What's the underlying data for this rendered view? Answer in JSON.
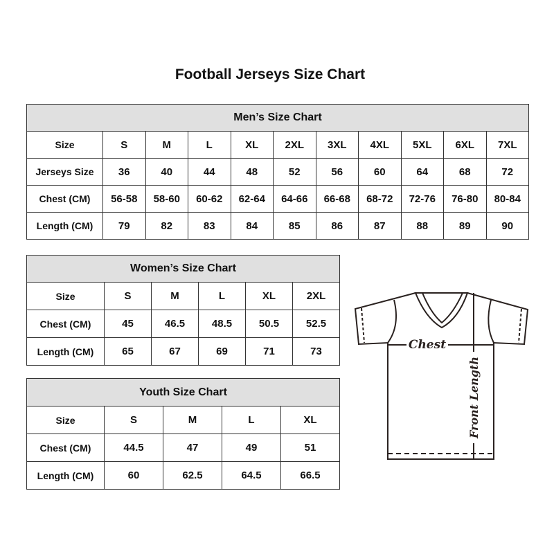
{
  "title": "Football Jerseys Size Chart",
  "men": {
    "title": "Men’s Size Chart",
    "rows": [
      {
        "label": "Size",
        "values": [
          "S",
          "M",
          "L",
          "XL",
          "2XL",
          "3XL",
          "4XL",
          "5XL",
          "6XL",
          "7XL"
        ]
      },
      {
        "label": "Jerseys Size",
        "values": [
          "36",
          "40",
          "44",
          "48",
          "52",
          "56",
          "60",
          "64",
          "68",
          "72"
        ]
      },
      {
        "label": "Chest (CM)",
        "values": [
          "56-58",
          "58-60",
          "60-62",
          "62-64",
          "64-66",
          "66-68",
          "68-72",
          "72-76",
          "76-80",
          "80-84"
        ]
      },
      {
        "label": "Length (CM)",
        "values": [
          "79",
          "82",
          "83",
          "84",
          "85",
          "86",
          "87",
          "88",
          "89",
          "90"
        ]
      }
    ]
  },
  "women": {
    "title": "Women’s Size Chart",
    "rows": [
      {
        "label": "Size",
        "values": [
          "S",
          "M",
          "L",
          "XL",
          "2XL"
        ]
      },
      {
        "label": "Chest (CM)",
        "values": [
          "45",
          "46.5",
          "48.5",
          "50.5",
          "52.5"
        ]
      },
      {
        "label": "Length (CM)",
        "values": [
          "65",
          "67",
          "69",
          "71",
          "73"
        ]
      }
    ]
  },
  "youth": {
    "title": "Youth Size Chart",
    "rows": [
      {
        "label": "Size",
        "values": [
          "S",
          "M",
          "L",
          "XL"
        ]
      },
      {
        "label": "Chest (CM)",
        "values": [
          "44.5",
          "47",
          "49",
          "51"
        ]
      },
      {
        "label": "Length (CM)",
        "values": [
          "60",
          "62.5",
          "64.5",
          "66.5"
        ]
      }
    ]
  },
  "diagram": {
    "chest_label": "Chest",
    "length_label": "Front Length"
  }
}
